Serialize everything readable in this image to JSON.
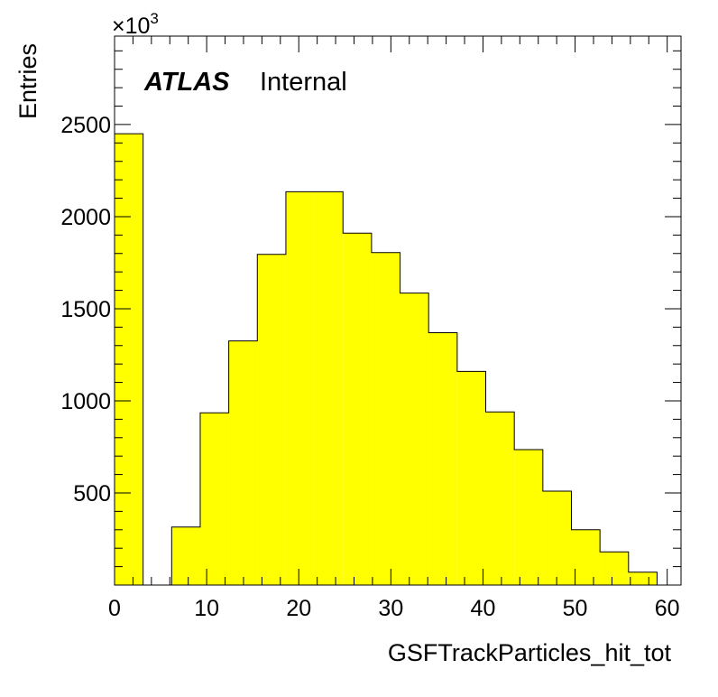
{
  "chart_data": {
    "type": "bar",
    "style": "histogram",
    "fill_color": "#ffff00",
    "edge_color": "#000000",
    "xlabel": "GSFTrackParticles_hit_tot",
    "ylabel": "Entries",
    "y_multiplier": "×10",
    "y_multiplier_exp": "3",
    "xlim": [
      0,
      61.5
    ],
    "ylim": [
      0,
      2980
    ],
    "x_ticks": [
      "0",
      "10",
      "20",
      "30",
      "40",
      "50",
      "60"
    ],
    "y_ticks": [
      "500",
      "1000",
      "1500",
      "2000",
      "2500"
    ],
    "grid": false,
    "bins": [
      {
        "x0": 0.0,
        "x1": 3.1,
        "value": 2450
      },
      {
        "x0": 3.1,
        "x1": 6.2,
        "value": 0
      },
      {
        "x0": 6.2,
        "x1": 9.3,
        "value": 315
      },
      {
        "x0": 9.3,
        "x1": 12.4,
        "value": 935
      },
      {
        "x0": 12.4,
        "x1": 15.5,
        "value": 1325
      },
      {
        "x0": 15.5,
        "x1": 18.6,
        "value": 1795
      },
      {
        "x0": 18.6,
        "x1": 21.7,
        "value": 2135
      },
      {
        "x0": 21.7,
        "x1": 24.8,
        "value": 2135
      },
      {
        "x0": 24.8,
        "x1": 27.9,
        "value": 1910
      },
      {
        "x0": 27.9,
        "x1": 31.0,
        "value": 1805
      },
      {
        "x0": 31.0,
        "x1": 34.1,
        "value": 1585
      },
      {
        "x0": 34.1,
        "x1": 37.2,
        "value": 1370
      },
      {
        "x0": 37.2,
        "x1": 40.3,
        "value": 1160
      },
      {
        "x0": 40.3,
        "x1": 43.4,
        "value": 940
      },
      {
        "x0": 43.4,
        "x1": 46.5,
        "value": 735
      },
      {
        "x0": 46.5,
        "x1": 49.6,
        "value": 510
      },
      {
        "x0": 49.6,
        "x1": 52.7,
        "value": 300
      },
      {
        "x0": 52.7,
        "x1": 55.8,
        "value": 180
      },
      {
        "x0": 55.8,
        "x1": 58.9,
        "value": 70
      }
    ]
  },
  "annotations": {
    "experiment": "ATLAS",
    "status": "Internal"
  }
}
